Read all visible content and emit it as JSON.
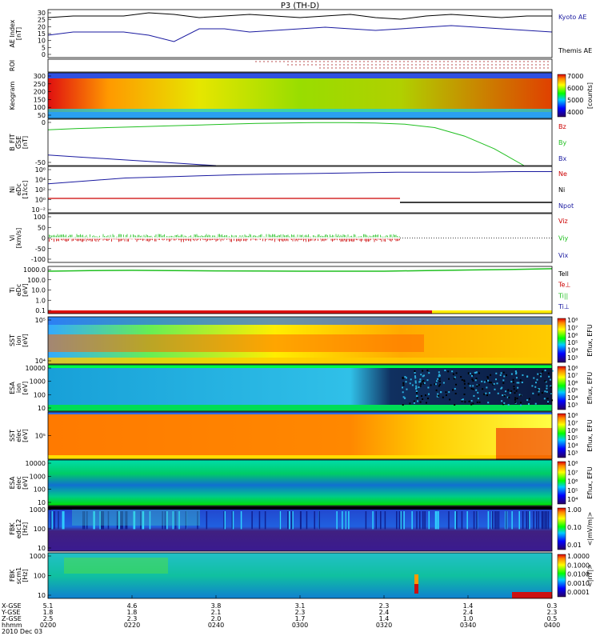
{
  "title": "P3 (TH-D)",
  "colors": {
    "kyoto": "#000000",
    "themis": "#1a1aa0",
    "red": "#cc0000",
    "green": "#1fbf1f",
    "blue": "#1a1aa0"
  },
  "panels": [
    {
      "id": "ae",
      "ylabel": [
        "AE Index",
        "[nT]"
      ],
      "ticks": [
        "30",
        "25",
        "20",
        "15",
        "10",
        "5",
        "0"
      ],
      "legend": [
        {
          "text": "Kyoto AE",
          "color": "blue"
        },
        {
          "text": "Themis AE",
          "color": "black"
        }
      ]
    },
    {
      "id": "roi",
      "ylabel": [
        "ROI"
      ],
      "ticks": [],
      "legend": []
    },
    {
      "id": "keogram",
      "ylabel": [
        "Keogram"
      ],
      "ticks": [
        "300",
        "250",
        "200",
        "150",
        "100",
        "50"
      ],
      "cbar": {
        "ticks": [
          "7000",
          "6000",
          "5000",
          "4000"
        ],
        "label": "[counts]"
      }
    },
    {
      "id": "bfit",
      "ylabel": [
        "B_FIT",
        "GSE",
        "[nT]"
      ],
      "ticks": [
        "0",
        "-50"
      ],
      "legend": [
        {
          "text": "Bz",
          "color": "red"
        },
        {
          "text": "By",
          "color": "green"
        },
        {
          "text": "Bx",
          "color": "blue"
        }
      ]
    },
    {
      "id": "ni",
      "ylabel": [
        "Ni",
        "eDc",
        "[1/cc]"
      ],
      "ticks": [
        "10⁶",
        "10⁴",
        "10²",
        "10⁰",
        "10⁻²"
      ],
      "legend": [
        {
          "text": "Ne",
          "color": "red"
        },
        {
          "text": "Ni",
          "color": "black"
        },
        {
          "text": "Npot",
          "color": "blue"
        }
      ]
    },
    {
      "id": "vi",
      "ylabel": [
        "Vi",
        "[km/s]"
      ],
      "ticks": [
        "100",
        "50",
        "0",
        "-50",
        "-100"
      ],
      "legend": [
        {
          "text": "Viz",
          "color": "red"
        },
        {
          "text": "Viy",
          "color": "green"
        },
        {
          "text": "Vix",
          "color": "blue"
        }
      ]
    },
    {
      "id": "ti",
      "ylabel": [
        "Ti",
        "eDc",
        "[eV]"
      ],
      "ticks": [
        "1000.0",
        "100.0",
        "10.0",
        "1.0",
        "0.1"
      ],
      "legend": [
        {
          "text": "Tell",
          "color": "black"
        },
        {
          "text": "Te⊥",
          "color": "red"
        },
        {
          "text": "Ti||",
          "color": "green"
        },
        {
          "text": "Ti⊥",
          "color": "blue"
        }
      ]
    },
    {
      "id": "sst_i",
      "ylabel": [
        "SST",
        "ion",
        "[eV]"
      ],
      "ticks": [
        "10⁵",
        "10⁴"
      ],
      "cbar": {
        "ticks": [
          "10⁸",
          "10⁷",
          "10⁶",
          "10⁵",
          "10⁴",
          "10³"
        ],
        "label": "Eflux, EFU"
      }
    },
    {
      "id": "esa_i",
      "ylabel": [
        "ESA",
        "ion",
        "[eV]"
      ],
      "ticks": [
        "10000",
        "1000",
        "100",
        "10"
      ],
      "cbar": {
        "ticks": [
          "10⁸",
          "10⁷",
          "10⁶",
          "10⁵",
          "10⁴",
          "10³"
        ],
        "label": "Eflux, EFU"
      }
    },
    {
      "id": "sst_e",
      "ylabel": [
        "SST",
        "elec",
        "[eV]"
      ],
      "ticks": [
        "10⁵"
      ],
      "cbar": {
        "ticks": [
          "10⁸",
          "10⁷",
          "10⁶",
          "10⁵",
          "10⁴",
          "10³"
        ],
        "label": "Eflux, EFU"
      }
    },
    {
      "id": "esa_e",
      "ylabel": [
        "ESA",
        "elec",
        "[eV]"
      ],
      "ticks": [
        "10000",
        "1000",
        "100",
        "10"
      ],
      "cbar": {
        "ticks": [
          "10⁸",
          "10⁷",
          "10⁶",
          "10⁵",
          "10⁴"
        ],
        "label": "Eflux, EFU"
      }
    },
    {
      "id": "fbk1",
      "ylabel": [
        "FBK",
        "edc12",
        "[Hz]"
      ],
      "ticks": [
        "1000",
        "100",
        "10"
      ],
      "cbar": {
        "ticks": [
          "1.00",
          "0.10",
          "0.01"
        ],
        "label": "<|mV/m|>"
      }
    },
    {
      "id": "fbk2",
      "ylabel": [
        "FBK",
        "scm1",
        "[Hz]"
      ],
      "ticks": [
        "1000",
        "100",
        "10"
      ],
      "cbar": {
        "ticks": [
          "1.0000",
          "0.1000",
          "0.0100",
          "0.0010",
          "0.0001"
        ],
        "label": "<|nT|>"
      }
    }
  ],
  "bottom_axis": {
    "row_labels": [
      "X-GSE",
      "Y-GSE",
      "Z-GSE",
      "hhmm",
      "2010 Dec 03"
    ],
    "columns": [
      {
        "x": "5.1",
        "y": "1.8",
        "z": "2.5",
        "t": "0200"
      },
      {
        "x": "4.6",
        "y": "1.8",
        "z": "2.3",
        "t": "0220"
      },
      {
        "x": "3.8",
        "y": "2.1",
        "z": "2.0",
        "t": "0240"
      },
      {
        "x": "3.1",
        "y": "2.3",
        "z": "1.7",
        "t": "0300"
      },
      {
        "x": "2.3",
        "y": "2.4",
        "z": "1.4",
        "t": "0320"
      },
      {
        "x": "1.4",
        "y": "2.4",
        "z": "1.0",
        "t": "0340"
      },
      {
        "x": "0.3",
        "y": "2.3",
        "z": "0.5",
        "t": "0400"
      }
    ]
  },
  "chart_data": {
    "type": "line",
    "title": "P3 (TH-D)",
    "x_range": [
      "0200",
      "0400"
    ],
    "ae_index": {
      "ylim": [
        0,
        30
      ],
      "series": [
        {
          "name": "Kyoto AE",
          "values": [
            25,
            26,
            26,
            26,
            28,
            27,
            25,
            26,
            27,
            26,
            25,
            26,
            27,
            25,
            24,
            26,
            27,
            26,
            25,
            26,
            26
          ]
        },
        {
          "name": "Themis AE",
          "values": [
            14,
            16,
            16,
            16,
            14,
            10,
            18,
            18,
            16,
            17,
            18,
            19,
            18,
            17,
            18,
            19,
            20,
            19,
            18,
            17,
            16
          ]
        }
      ]
    },
    "b_fit": {
      "ylim": [
        -80,
        30
      ],
      "series": [
        {
          "name": "By",
          "values": [
            5,
            8,
            10,
            12,
            14,
            16,
            18,
            20,
            21,
            22,
            22,
            21,
            18,
            10,
            -10,
            -40,
            -80
          ]
        },
        {
          "name": "Bx",
          "values": [
            -55,
            -60,
            -65,
            -70,
            -75,
            -80
          ]
        }
      ]
    },
    "ni": {
      "series": [
        {
          "name": "Ni",
          "values": [
            3,
            3.5,
            4,
            4.2,
            4.4,
            4.6,
            4.7,
            4.8,
            4.9,
            5,
            5,
            5,
            5.1,
            5.1
          ]
        }
      ]
    },
    "ti": {
      "series": [
        {
          "name": "Ti||",
          "values": [
            700,
            800,
            850,
            800,
            750,
            720,
            700,
            690,
            700,
            800,
            900,
            1000,
            1200
          ]
        }
      ]
    }
  }
}
